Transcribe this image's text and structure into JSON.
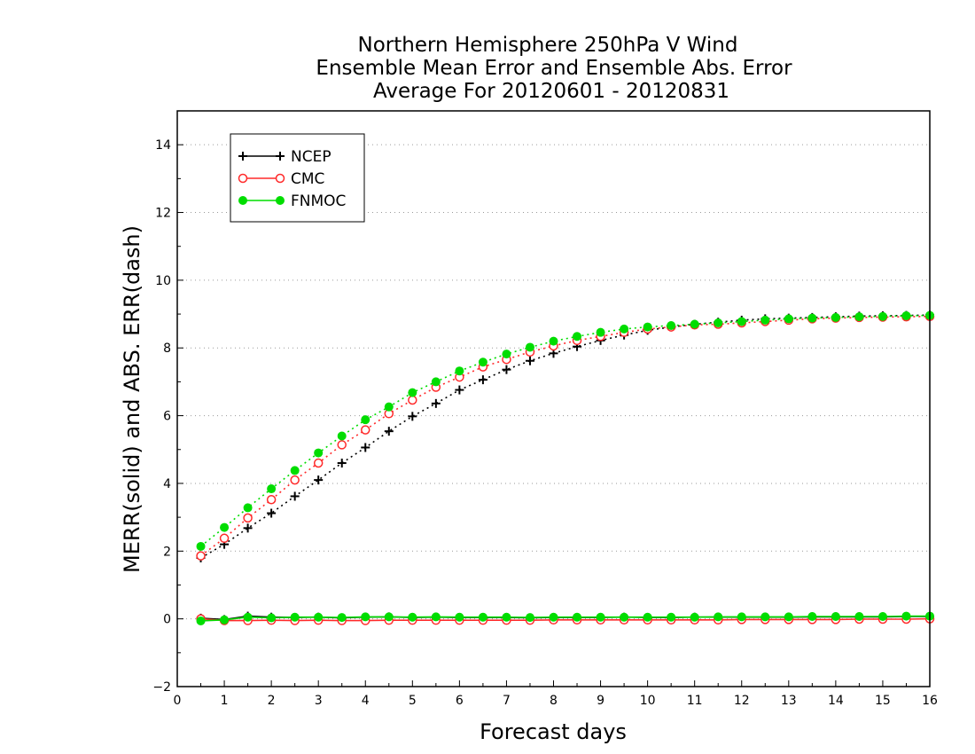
{
  "chart_data": {
    "type": "line",
    "title_lines": [
      "Northern Hemisphere 250hPa V Wind",
      "Ensemble Mean Error and Ensemble Abs. Error",
      "Average For 20120601 - 20120831"
    ],
    "xlabel": "Forecast days",
    "ylabel": "MERR(solid) and ABS. ERR(dash)",
    "xlim": [
      0,
      16
    ],
    "ylim": [
      -2,
      15
    ],
    "xticks": [
      0,
      1,
      2,
      3,
      4,
      5,
      6,
      7,
      8,
      9,
      10,
      11,
      12,
      13,
      14,
      15,
      16
    ],
    "yticks": [
      -2,
      0,
      2,
      4,
      6,
      8,
      10,
      12,
      14
    ],
    "grid": true,
    "legend_position": "top-left",
    "x": [
      0.5,
      1.0,
      1.5,
      2.0,
      2.5,
      3.0,
      3.5,
      4.0,
      4.5,
      5.0,
      5.5,
      6.0,
      6.5,
      7.0,
      7.5,
      8.0,
      8.5,
      9.0,
      9.5,
      10.0,
      10.5,
      11.0,
      11.5,
      12.0,
      12.5,
      13.0,
      13.5,
      14.0,
      14.5,
      15.0,
      15.5,
      16.0
    ],
    "series": [
      {
        "name": "NCEP",
        "color": "#000000",
        "marker": "plus",
        "merr": [
          0.02,
          -0.02,
          0.08,
          0.05,
          0.04,
          0.05,
          0.03,
          0.05,
          0.06,
          0.04,
          0.05,
          0.04,
          0.04,
          0.04,
          0.03,
          0.04,
          0.04,
          0.04,
          0.05,
          0.04,
          0.04,
          0.05,
          0.05,
          0.05,
          0.05,
          0.05,
          0.06,
          0.06,
          0.06,
          0.06,
          0.07,
          0.07
        ],
        "abs_err": [
          1.8,
          2.2,
          2.68,
          3.12,
          3.62,
          4.1,
          4.6,
          5.06,
          5.54,
          5.98,
          6.36,
          6.76,
          7.06,
          7.36,
          7.62,
          7.84,
          8.04,
          8.22,
          8.38,
          8.52,
          8.62,
          8.7,
          8.76,
          8.82,
          8.86,
          8.88,
          8.9,
          8.92,
          8.94,
          8.95,
          8.96,
          8.97
        ]
      },
      {
        "name": "CMC",
        "color": "#ff2a2a",
        "marker": "open-circle",
        "merr": [
          0.0,
          -0.05,
          -0.05,
          -0.04,
          -0.05,
          -0.04,
          -0.05,
          -0.05,
          -0.04,
          -0.04,
          -0.04,
          -0.04,
          -0.04,
          -0.04,
          -0.04,
          -0.03,
          -0.03,
          -0.03,
          -0.03,
          -0.03,
          -0.03,
          -0.03,
          -0.03,
          -0.02,
          -0.02,
          -0.02,
          -0.02,
          -0.02,
          -0.01,
          -0.01,
          -0.01,
          0.0
        ],
        "abs_err": [
          1.86,
          2.38,
          2.98,
          3.52,
          4.1,
          4.6,
          5.14,
          5.58,
          6.06,
          6.46,
          6.84,
          7.14,
          7.44,
          7.66,
          7.88,
          8.06,
          8.22,
          8.34,
          8.46,
          8.56,
          8.62,
          8.68,
          8.7,
          8.74,
          8.78,
          8.82,
          8.86,
          8.88,
          8.9,
          8.91,
          8.92,
          8.93
        ]
      },
      {
        "name": "FNMOC",
        "color": "#00dd00",
        "marker": "filled-circle",
        "merr": [
          -0.06,
          -0.03,
          0.05,
          0.03,
          0.05,
          0.05,
          0.04,
          0.06,
          0.06,
          0.05,
          0.06,
          0.05,
          0.05,
          0.05,
          0.04,
          0.05,
          0.05,
          0.05,
          0.05,
          0.05,
          0.05,
          0.05,
          0.06,
          0.06,
          0.06,
          0.06,
          0.07,
          0.07,
          0.07,
          0.07,
          0.08,
          0.08
        ],
        "abs_err": [
          2.14,
          2.7,
          3.28,
          3.84,
          4.38,
          4.9,
          5.4,
          5.88,
          6.26,
          6.68,
          7.0,
          7.32,
          7.58,
          7.82,
          8.02,
          8.2,
          8.34,
          8.46,
          8.56,
          8.62,
          8.66,
          8.7,
          8.74,
          8.78,
          8.82,
          8.86,
          8.88,
          8.9,
          8.92,
          8.93,
          8.95,
          8.96
        ]
      }
    ]
  }
}
